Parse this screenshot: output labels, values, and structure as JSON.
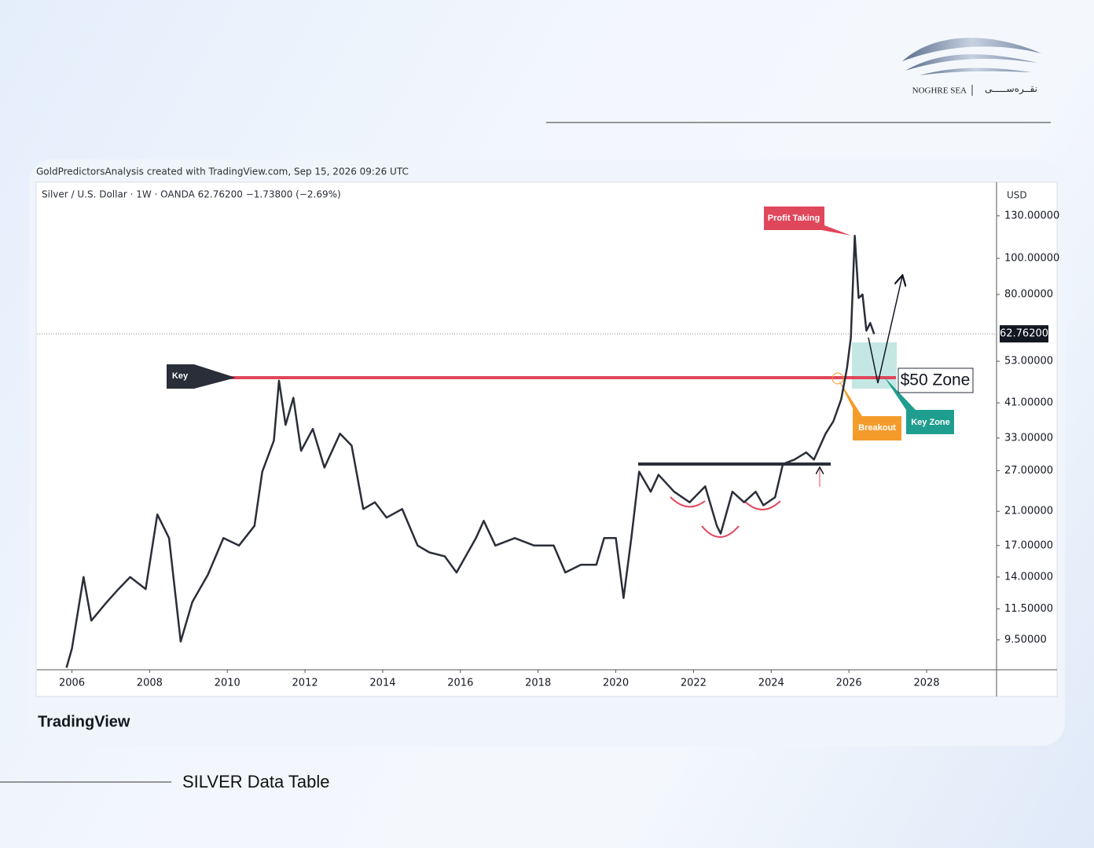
{
  "header": {
    "brand": "NOGHRE SEA",
    "brand_fa": "نقــره‌ســـــی",
    "footer_title": "SILVER Data Table"
  },
  "chart_data": {
    "type": "line",
    "caption": "GoldPredictorsAnalysis created with TradingView.com, Sep 15, 2026 09:26 UTC",
    "symbol": "Silver / U.S. Dollar · 1W · OANDA  62.76200  −1.73800 (−2.69%)",
    "y_axis_label": "USD",
    "watermark": "TradingView",
    "log_scale": true,
    "grid": false,
    "xlim": [
      2005.1,
      2029.8
    ],
    "ylim": [
      7.9,
      160
    ],
    "xticks": [
      2006,
      2008,
      2010,
      2012,
      2014,
      2016,
      2018,
      2020,
      2022,
      2024,
      2026,
      2028
    ],
    "yticks": [
      {
        "value": 130,
        "label": "130.00000"
      },
      {
        "value": 100,
        "label": "100.00000"
      },
      {
        "value": 80,
        "label": "80.00000"
      },
      {
        "value": 53,
        "label": "53.00000"
      },
      {
        "value": 41,
        "label": "41.00000"
      },
      {
        "value": 33,
        "label": "33.00000"
      },
      {
        "value": 27,
        "label": "27.00000"
      },
      {
        "value": 21,
        "label": "21.00000"
      },
      {
        "value": 17,
        "label": "17.00000"
      },
      {
        "value": 14,
        "label": "14.00000"
      },
      {
        "value": 11.5,
        "label": "11.50000"
      },
      {
        "value": 9.5,
        "label": "9.50000"
      }
    ],
    "last_price": {
      "value": 62.762,
      "label": "62.76200"
    },
    "annotations": [
      "Profit Taking",
      "Key",
      "Breakout",
      "Key Zone",
      "$50 Zone"
    ],
    "series": [
      {
        "name": "Silver",
        "color": "#2a2e39",
        "x": [
          2005.86,
          2006.0,
          2006.3,
          2006.5,
          2006.9,
          2007.2,
          2007.5,
          2007.9,
          2008.2,
          2008.5,
          2008.8,
          2009.1,
          2009.5,
          2009.9,
          2010.3,
          2010.7,
          2010.9,
          2011.2,
          2011.33,
          2011.5,
          2011.7,
          2011.9,
          2012.2,
          2012.5,
          2012.9,
          2013.2,
          2013.5,
          2013.8,
          2014.1,
          2014.5,
          2014.9,
          2015.2,
          2015.6,
          2015.9,
          2016.4,
          2016.6,
          2016.9,
          2017.4,
          2017.9,
          2018.4,
          2018.7,
          2019.1,
          2019.5,
          2019.7,
          2020.0,
          2020.2,
          2020.4,
          2020.6,
          2020.9,
          2021.1,
          2021.5,
          2021.9,
          2022.3,
          2022.6,
          2022.7,
          2023.0,
          2023.3,
          2023.6,
          2023.8,
          2024.1,
          2024.3,
          2024.6,
          2024.9,
          2025.1,
          2025.4,
          2025.6,
          2025.8,
          2025.95,
          2026.05,
          2026.15,
          2026.25,
          2026.35,
          2026.45,
          2026.55,
          2026.65
        ],
        "values": [
          8.0,
          9.0,
          14.0,
          10.7,
          12.0,
          13.0,
          14.0,
          13.0,
          20.6,
          17.8,
          9.4,
          12.0,
          14.2,
          17.8,
          17.0,
          19.2,
          26.8,
          32.5,
          47.0,
          35.8,
          42.3,
          30.5,
          34.9,
          27.5,
          33.9,
          31.5,
          21.3,
          22.2,
          20.2,
          21.3,
          17.0,
          16.3,
          15.9,
          14.4,
          17.8,
          19.8,
          17.0,
          17.8,
          17.0,
          17.0,
          14.4,
          15.1,
          15.1,
          17.8,
          17.8,
          12.3,
          17.8,
          26.8,
          23.7,
          26.3,
          23.7,
          22.2,
          24.5,
          19.2,
          18.3,
          23.7,
          22.2,
          23.7,
          21.8,
          22.9,
          28.1,
          28.9,
          30.2,
          28.9,
          33.9,
          36.6,
          41.9,
          50.8,
          61.3,
          115.0,
          78.3,
          80.0,
          64.0,
          67.1,
          62.7
        ]
      }
    ]
  }
}
